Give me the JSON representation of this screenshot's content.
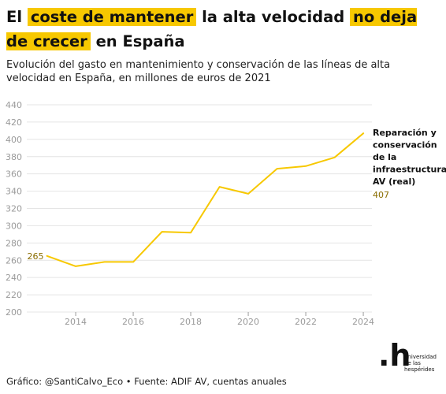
{
  "header": {
    "title_parts": [
      {
        "text": "El",
        "hl": false
      },
      {
        "text": "coste de mantener",
        "hl": true
      },
      {
        "text": "la alta velocidad",
        "hl": false
      },
      {
        "text": "no deja de crecer",
        "hl": true
      },
      {
        "text": "en España",
        "hl": false
      }
    ],
    "subtitle": "Evolución del gasto en mantenimiento y conservación de las líneas de alta velocidad en España, en millones de euros de 2021"
  },
  "footer": {
    "credit": "Gráfico: @SantiCalvo_Eco • Fuente: ADIF AV, cuentas anuales"
  },
  "logo": {
    "mark": ".h",
    "lines": [
      "universidad",
      "de las",
      "hespérides"
    ]
  },
  "colors": {
    "line": "#f7c800",
    "label": "#8a6d00",
    "grid": "#e4e4e4",
    "axis_text": "#9a9a9a"
  },
  "chart_data": {
    "type": "line",
    "title": "",
    "xlabel": "",
    "ylabel": "",
    "x": [
      2013,
      2014,
      2015,
      2016,
      2017,
      2018,
      2019,
      2020,
      2021,
      2022,
      2023,
      2024
    ],
    "series": [
      {
        "name": "Reparación y conservación de la infraestructura AV (real)",
        "values": [
          265,
          253,
          258,
          258,
          293,
          292,
          345,
          337,
          366,
          369,
          379,
          407
        ]
      }
    ],
    "xlim": [
      2012.3,
      2024.3
    ],
    "ylim": [
      200,
      440
    ],
    "xticks": [
      2014,
      2016,
      2018,
      2020,
      2022,
      2024
    ],
    "yticks": [
      200,
      220,
      240,
      260,
      280,
      300,
      320,
      340,
      360,
      380,
      400,
      420,
      440
    ],
    "grid": true,
    "legend": "none",
    "annotations": [
      {
        "text": "265"
      },
      {
        "text": "407"
      }
    ]
  }
}
